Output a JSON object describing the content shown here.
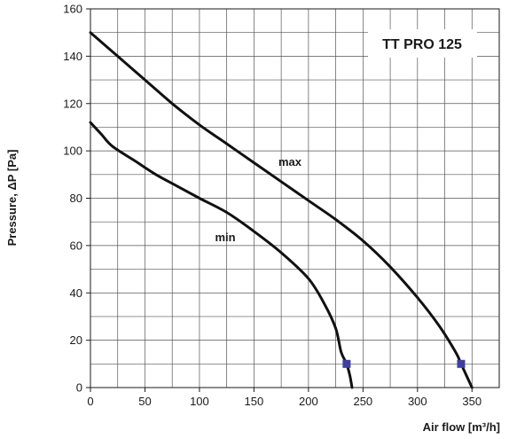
{
  "chart_data": {
    "type": "line",
    "title": "TT PRO 125",
    "xlabel": "Air flow [m³/h]",
    "ylabel": "Pressure, ΔP [Pa]",
    "xlim": [
      0,
      375
    ],
    "ylim": [
      0,
      160
    ],
    "x_ticks": [
      0,
      50,
      100,
      150,
      200,
      250,
      300,
      350
    ],
    "y_ticks": [
      0,
      20,
      40,
      60,
      80,
      100,
      120,
      140,
      160
    ],
    "grid": true,
    "series": [
      {
        "name": "max",
        "color": "#111111",
        "points": [
          [
            0,
            150
          ],
          [
            25,
            140
          ],
          [
            50,
            130
          ],
          [
            75,
            120
          ],
          [
            100,
            111
          ],
          [
            125,
            103
          ],
          [
            150,
            95
          ],
          [
            175,
            87
          ],
          [
            200,
            79
          ],
          [
            225,
            71
          ],
          [
            250,
            62
          ],
          [
            275,
            51
          ],
          [
            300,
            38
          ],
          [
            320,
            26
          ],
          [
            335,
            15
          ],
          [
            340,
            10
          ],
          [
            345,
            5
          ],
          [
            350,
            0
          ]
        ],
        "marker": [
          340,
          10
        ]
      },
      {
        "name": "min",
        "color": "#111111",
        "points": [
          [
            0,
            112
          ],
          [
            10,
            107
          ],
          [
            20,
            102
          ],
          [
            40,
            96
          ],
          [
            60,
            90
          ],
          [
            80,
            85
          ],
          [
            100,
            80
          ],
          [
            125,
            74
          ],
          [
            150,
            66
          ],
          [
            175,
            57
          ],
          [
            200,
            46
          ],
          [
            215,
            35
          ],
          [
            225,
            25
          ],
          [
            230,
            15
          ],
          [
            235,
            10
          ],
          [
            238,
            5
          ],
          [
            240,
            0
          ]
        ],
        "marker": [
          235,
          10
        ]
      }
    ],
    "marker_color": "#3f3fa0"
  }
}
